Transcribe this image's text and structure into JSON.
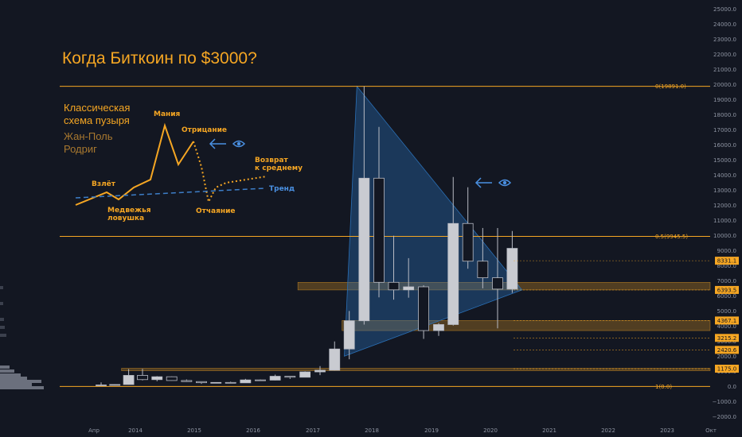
{
  "chart_data": {
    "type": "candlestick",
    "title": "Когда Биткоин по $3000?",
    "interval": "quarterly",
    "y_axis_labels": [
      "25000.0",
      "24000.0",
      "23000.0",
      "22000.0",
      "21000.0",
      "20000.0",
      "19000.0",
      "18000.0",
      "17000.0",
      "16000.0",
      "15000.0",
      "14000.0",
      "13000.0",
      "12000.0",
      "11000.0",
      "10000.0",
      "9000.0",
      "8000.0",
      "7000.0",
      "6000.0",
      "5000.0",
      "4000.0",
      "3000.0",
      "2000.0",
      "1000.0",
      "0.0",
      "−1000.0",
      "−2000.0"
    ],
    "y_ticks": [
      25000,
      24000,
      23000,
      22000,
      21000,
      20000,
      19000,
      18000,
      17000,
      16000,
      15000,
      14000,
      13000,
      12000,
      11000,
      10000,
      9000,
      8000,
      7000,
      6000,
      5000,
      4000,
      3000,
      2000,
      1000,
      0,
      -1000,
      -2000
    ],
    "ylim": [
      -2300,
      25400
    ],
    "x_axis_labels": [
      "Апр",
      "2014",
      "2015",
      "2016",
      "2017",
      "2018",
      "2019",
      "2020",
      "2021",
      "2022",
      "2023",
      "Окт"
    ],
    "x_tick_dates": [
      "2013-04-01",
      "2014-01-01",
      "2015-01-01",
      "2016-01-01",
      "2017-01-01",
      "2018-01-01",
      "2019-01-01",
      "2020-01-01",
      "2021-01-01",
      "2022-01-01",
      "2023-01-01",
      "2023-10-01"
    ],
    "candles": [
      {
        "date": "2013-04-01",
        "open": 93,
        "high": 266,
        "low": 70,
        "close": 97
      },
      {
        "date": "2013-07-01",
        "open": 97,
        "high": 140,
        "low": 65,
        "close": 125
      },
      {
        "date": "2013-10-01",
        "open": 125,
        "high": 1150,
        "low": 120,
        "close": 730
      },
      {
        "date": "2014-01-01",
        "open": 730,
        "high": 1160,
        "low": 400,
        "close": 450
      },
      {
        "date": "2014-04-01",
        "open": 450,
        "high": 680,
        "low": 340,
        "close": 640
      },
      {
        "date": "2014-07-01",
        "open": 640,
        "high": 660,
        "low": 380,
        "close": 390
      },
      {
        "date": "2014-10-01",
        "open": 390,
        "high": 460,
        "low": 300,
        "close": 320
      },
      {
        "date": "2015-01-01",
        "open": 320,
        "high": 320,
        "low": 170,
        "close": 245
      },
      {
        "date": "2015-04-01",
        "open": 245,
        "high": 265,
        "low": 215,
        "close": 264
      },
      {
        "date": "2015-07-01",
        "open": 264,
        "high": 315,
        "low": 200,
        "close": 236
      },
      {
        "date": "2015-10-01",
        "open": 236,
        "high": 500,
        "low": 235,
        "close": 430
      },
      {
        "date": "2016-01-01",
        "open": 430,
        "high": 460,
        "low": 360,
        "close": 416
      },
      {
        "date": "2016-04-01",
        "open": 416,
        "high": 780,
        "low": 400,
        "close": 673
      },
      {
        "date": "2016-07-01",
        "open": 673,
        "high": 680,
        "low": 500,
        "close": 608
      },
      {
        "date": "2016-10-01",
        "open": 608,
        "high": 1000,
        "low": 600,
        "close": 963
      },
      {
        "date": "2017-01-01",
        "open": 963,
        "high": 1350,
        "low": 750,
        "close": 1070
      },
      {
        "date": "2017-04-01",
        "open": 1070,
        "high": 2980,
        "low": 1050,
        "close": 2480
      },
      {
        "date": "2017-07-01",
        "open": 2480,
        "high": 5000,
        "low": 1800,
        "close": 4350
      },
      {
        "date": "2017-10-01",
        "open": 4350,
        "high": 19891,
        "low": 4100,
        "close": 13800
      },
      {
        "date": "2018-01-01",
        "open": 13800,
        "high": 17200,
        "low": 5900,
        "close": 6900
      },
      {
        "date": "2018-04-01",
        "open": 6900,
        "high": 9990,
        "low": 5750,
        "close": 6400
      },
      {
        "date": "2018-07-01",
        "open": 6400,
        "high": 8500,
        "low": 5880,
        "close": 6600
      },
      {
        "date": "2018-10-01",
        "open": 6600,
        "high": 6700,
        "low": 3150,
        "close": 3700
      },
      {
        "date": "2019-01-01",
        "open": 3700,
        "high": 4200,
        "low": 3350,
        "close": 4100
      },
      {
        "date": "2019-04-01",
        "open": 4100,
        "high": 13880,
        "low": 4030,
        "close": 10800
      },
      {
        "date": "2019-07-01",
        "open": 10800,
        "high": 13200,
        "low": 7800,
        "close": 8300
      },
      {
        "date": "2019-10-01",
        "open": 8300,
        "high": 10500,
        "low": 6500,
        "close": 7200
      },
      {
        "date": "2020-01-01",
        "open": 7200,
        "high": 10500,
        "low": 3850,
        "close": 6450
      },
      {
        "date": "2020-04-01",
        "open": 6450,
        "high": 10300,
        "low": 6200,
        "close": 9150
      }
    ],
    "fib_levels": [
      {
        "label": "0(19891.0)",
        "value": 19891
      },
      {
        "label": "0.5(9945.5)",
        "value": 9945.5
      },
      {
        "label": "1(0.0)",
        "value": 0
      }
    ],
    "price_tags": [
      {
        "label": "8331.1",
        "value": 8331.1
      },
      {
        "label": "6393.5",
        "value": 6393.5
      },
      {
        "label": "4367.1",
        "value": 4367.1
      },
      {
        "label": "3215.2",
        "value": 3215.2
      },
      {
        "label": "2420.6",
        "value": 2420.6
      },
      {
        "label": "1175.0",
        "value": 1175
      }
    ],
    "zones": [
      {
        "from": 6393.5,
        "to": 6900,
        "start": "2016-10-01"
      },
      {
        "from": 3700,
        "to": 4367.1,
        "start": "2017-07-01"
      },
      {
        "from": 1175,
        "to": 1200,
        "start": "2013-10-01"
      }
    ],
    "triangle": [
      {
        "date": "2017-10-01",
        "value": 19891
      },
      {
        "date": "2020-07-15",
        "value": 6393.5
      },
      {
        "date": "2017-07-15",
        "value": 2000
      }
    ],
    "annotations": {
      "title": "Когда Биткоин по $3000?",
      "scheme_line1": "Классическая",
      "scheme_line2": "схема пузыря",
      "author_line1": "Жан-Поль",
      "author_line2": "Родриг",
      "stages": {
        "takeoff": "Взлёт",
        "bear_trap_1": "Медвежья",
        "bear_trap_2": "ловушка",
        "mania": "Мания",
        "denial": "Отрицание",
        "despair": "Отчаяние",
        "return_1": "Возврат",
        "return_2": "к среднему",
        "trend": "Тренд"
      }
    }
  },
  "colors": {
    "background": "#131722",
    "accent": "#f5a623",
    "candle_up": "#c9cbd1",
    "candle_down": "#131722",
    "triangle": "#2a6fb5",
    "trend": "#3d7ec8",
    "eye": "#4a90e2"
  }
}
